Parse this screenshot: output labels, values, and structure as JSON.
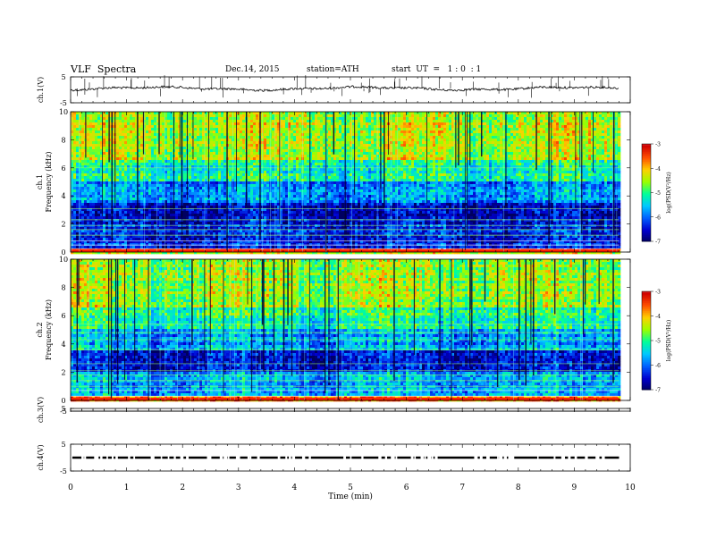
{
  "header": {
    "title": "VLF  Spectra",
    "date": "Dec.14, 2015",
    "station": "station=ATH",
    "start": "start  UT  =   1 : 0  : 1"
  },
  "chart_data": [
    {
      "type": "line",
      "panel": "ch1-waveform",
      "ylabel": "ch.1(V)",
      "ylim": [
        -5,
        5
      ],
      "yticks": [
        "5",
        "-5"
      ],
      "xlim": [
        0,
        10
      ],
      "data_extent_min": [
        0,
        9.8
      ],
      "approx_level": 0.5,
      "color": "#000000"
    },
    {
      "type": "heatmap",
      "panel": "ch1-spectrogram",
      "ylabel_top": "ch.1",
      "ylabel": "Frequency  (kHz)",
      "ylim": [
        0,
        10
      ],
      "yticks": [
        "0",
        "2",
        "4",
        "6",
        "8",
        "10"
      ],
      "xlim": [
        0,
        10
      ],
      "data_extent_min": [
        0,
        9.8
      ],
      "colorbar": {
        "label": "log(PSD(V²/Hz)",
        "min": -7,
        "max": -3,
        "ticks": [
          "-3",
          "-4",
          "-5",
          "-6",
          "-7"
        ]
      },
      "colormap": [
        "#000060",
        "#0000d0",
        "#0060ff",
        "#00c8ff",
        "#00ff9a",
        "#9aff00",
        "#ffd000",
        "#ff5000",
        "#d00000",
        "#ffffff"
      ],
      "band_profile_khz": [
        {
          "from": 0,
          "to": 0.3,
          "level": 0.85
        },
        {
          "from": 0.3,
          "to": 2,
          "level": 0.15
        },
        {
          "from": 2,
          "to": 3.5,
          "level": 0.1
        },
        {
          "from": 3.5,
          "to": 5,
          "level": 0.28
        },
        {
          "from": 5,
          "to": 6.5,
          "level": 0.42
        },
        {
          "from": 6.5,
          "to": 10,
          "level": 0.58
        }
      ]
    },
    {
      "type": "heatmap",
      "panel": "ch2-spectrogram",
      "ylabel_top": "ch.2",
      "ylabel": "Frequency  (kHz)",
      "ylim": [
        0,
        10
      ],
      "yticks": [
        "0",
        "2",
        "4",
        "6",
        "8",
        "10"
      ],
      "xlim": [
        0,
        10
      ],
      "data_extent_min": [
        0,
        9.8
      ],
      "colorbar": {
        "label": "log(PSD(V²/Hz)",
        "min": -7,
        "max": -3,
        "ticks": [
          "-3",
          "-4",
          "-5",
          "-6",
          "-7"
        ]
      },
      "colormap": [
        "#000060",
        "#0000d0",
        "#0060ff",
        "#00c8ff",
        "#00ff9a",
        "#9aff00",
        "#ffd000",
        "#ff5000",
        "#d00000",
        "#ffffff"
      ],
      "band_profile_khz": [
        {
          "from": 0,
          "to": 0.3,
          "level": 0.7
        },
        {
          "from": 0.3,
          "to": 2,
          "level": 0.3
        },
        {
          "from": 2,
          "to": 3.5,
          "level": 0.15
        },
        {
          "from": 3.5,
          "to": 5,
          "level": 0.3
        },
        {
          "from": 5,
          "to": 6.5,
          "level": 0.45
        },
        {
          "from": 6.5,
          "to": 10,
          "level": 0.55
        }
      ]
    },
    {
      "type": "line",
      "panel": "ch3-waveform",
      "ylabel": "ch.3(V)",
      "ylim": [
        -5,
        5
      ],
      "yticks": [
        "5"
      ],
      "xlim": [
        0,
        10
      ],
      "data_extent_min": [
        0,
        9.8
      ],
      "approx_level": -5,
      "color": "#000000"
    },
    {
      "type": "line",
      "panel": "ch4-waveform",
      "ylabel": "ch.4(V)",
      "ylim": [
        -5,
        5
      ],
      "yticks": [
        "5",
        "-5"
      ],
      "xlim": [
        0,
        10
      ],
      "data_extent_min": [
        0,
        9.8
      ],
      "approx_level": 0,
      "color": "#000000"
    }
  ],
  "xaxis": {
    "label": "Time  (min)",
    "ticks": [
      "0",
      "1",
      "2",
      "3",
      "4",
      "5",
      "6",
      "7",
      "8",
      "9",
      "10"
    ],
    "range": [
      0,
      10
    ]
  }
}
